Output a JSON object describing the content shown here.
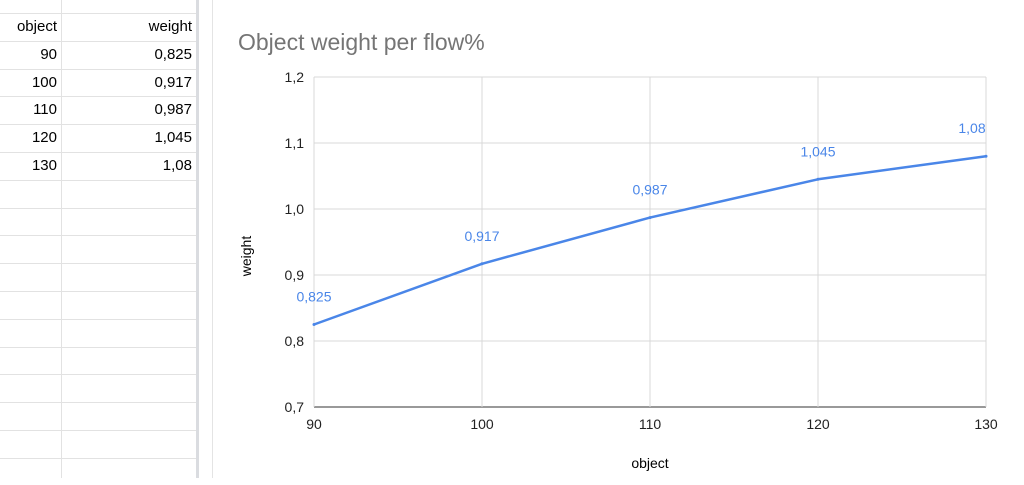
{
  "sheet": {
    "headers": [
      "object",
      "weight"
    ],
    "rows": [
      [
        "90",
        "0,825"
      ],
      [
        "100",
        "0,917"
      ],
      [
        "110",
        "0,987"
      ],
      [
        "120",
        "1,045"
      ],
      [
        "130",
        "1,08"
      ]
    ]
  },
  "chart_data": {
    "type": "line",
    "title": "Object weight per flow%",
    "xlabel": "object",
    "ylabel": "weight",
    "x": [
      90,
      100,
      110,
      120,
      130
    ],
    "series": [
      {
        "values": [
          0.825,
          0.917,
          0.987,
          1.045,
          1.08
        ],
        "labels": [
          "0,825",
          "0,917",
          "0,987",
          "1,045",
          "1,08"
        ]
      }
    ],
    "xlim": [
      90,
      130
    ],
    "ylim": [
      0.7,
      1.2
    ],
    "xticks": [
      "90",
      "100",
      "110",
      "120",
      "130"
    ],
    "yticks": [
      "0,7",
      "0,8",
      "0,9",
      "1,0",
      "1,1",
      "1,2"
    ],
    "grid": true,
    "legend": "none",
    "colors": {
      "line": "#4a86e8",
      "label": "#4a86e8",
      "title": "#757575",
      "grid": "#d9d9d9",
      "axis": "#333333"
    }
  }
}
